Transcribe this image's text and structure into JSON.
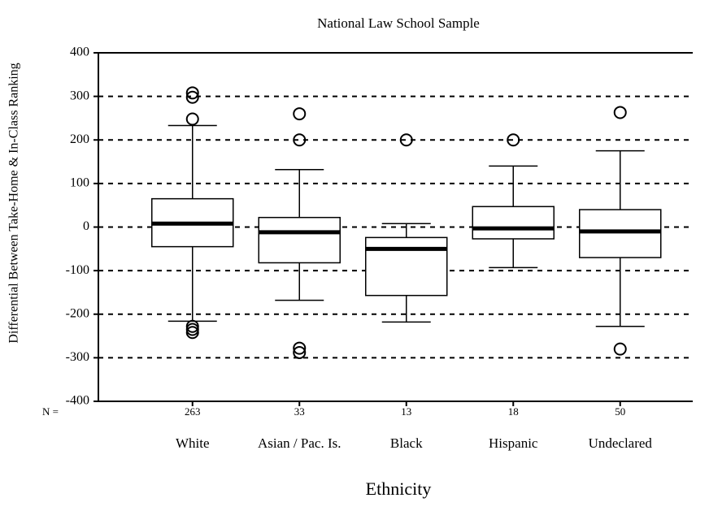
{
  "chart_data": {
    "type": "box",
    "title": "National Law School Sample",
    "xlabel": "Ethnicity",
    "ylabel": "Differential Between Take-Home & In-Class Ranking",
    "categories": [
      "White",
      "Asian / Pac. Is.",
      "Black",
      "Hispanic",
      "Undeclared"
    ],
    "n_label": "N =",
    "n": [
      263,
      33,
      13,
      18,
      50
    ],
    "boxes": [
      {
        "whisker_low": -216,
        "q1": -45,
        "median": 8,
        "q3": 65,
        "whisker_high": 233,
        "outliers": [
          308,
          298,
          248,
          -228,
          -235,
          -242
        ]
      },
      {
        "whisker_low": -168,
        "q1": -82,
        "median": -12,
        "q3": 22,
        "whisker_high": 132,
        "outliers": [
          260,
          200,
          -278,
          -288
        ]
      },
      {
        "whisker_low": -218,
        "q1": -157,
        "median": -50,
        "q3": -24,
        "whisker_high": 8,
        "outliers": [
          200
        ]
      },
      {
        "whisker_low": -93,
        "q1": -27,
        "median": -3,
        "q3": 47,
        "whisker_high": 140,
        "outliers": [
          200
        ]
      },
      {
        "whisker_low": -228,
        "q1": -70,
        "median": -10,
        "q3": 40,
        "whisker_high": 175,
        "outliers": [
          263,
          -280
        ]
      }
    ],
    "ylim": [
      -400,
      400
    ],
    "yticks": [
      -400,
      -300,
      -200,
      -100,
      0,
      100,
      200,
      300,
      400
    ],
    "grid": true
  }
}
